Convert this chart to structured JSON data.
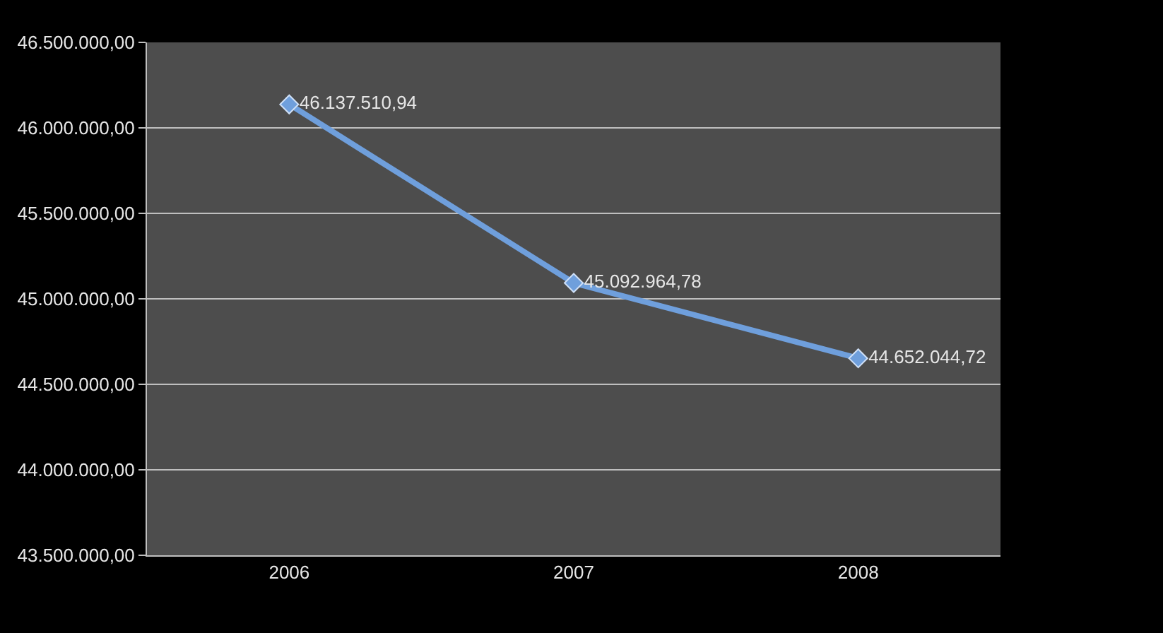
{
  "chart_data": {
    "type": "line",
    "categories": [
      "2006",
      "2007",
      "2008"
    ],
    "series": [
      {
        "color": "#6f9fdc",
        "values": [
          46137510.94,
          45092964.78,
          44652044.72
        ],
        "value_labels": [
          "46.137.510,94",
          "45.092.964,78",
          "44.652.044,72"
        ]
      }
    ],
    "ylim": [
      43500000,
      46500000
    ],
    "yticks": [
      {
        "value": 43500000,
        "label": "43.500.000,00"
      },
      {
        "value": 44000000,
        "label": "44.000.000,00"
      },
      {
        "value": 44500000,
        "label": "44.500.000,00"
      },
      {
        "value": 45000000,
        "label": "45.000.000,00"
      },
      {
        "value": 45500000,
        "label": "45.500.000,00"
      },
      {
        "value": 46000000,
        "label": "46.000.000,00"
      },
      {
        "value": 46500000,
        "label": "46.500.000,00"
      }
    ],
    "grid": "y",
    "legend": false,
    "marker": "diamond",
    "line_style": "solid"
  }
}
